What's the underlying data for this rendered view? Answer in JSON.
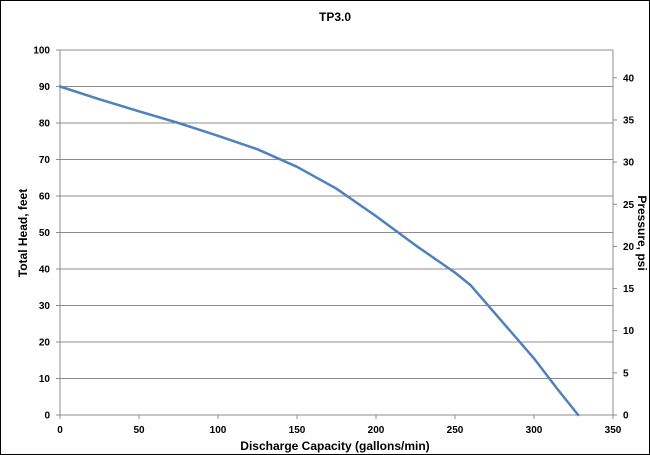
{
  "chart_data": {
    "type": "line",
    "title": "TP3.0",
    "xlabel": "Discharge Capacity (gallons/min)",
    "ylabel": "Total Head, feet",
    "y2label": "Pressure, psi",
    "xlim": [
      0,
      350
    ],
    "ylim": [
      0,
      100
    ],
    "y2lim": [
      0,
      43.3
    ],
    "x_ticks": [
      0,
      50,
      100,
      150,
      200,
      250,
      300,
      350
    ],
    "y_ticks": [
      0,
      10,
      20,
      30,
      40,
      50,
      60,
      70,
      80,
      90,
      100
    ],
    "y2_ticks": [
      0,
      5,
      10,
      15,
      20,
      25,
      30,
      35,
      40
    ],
    "grid": true,
    "legend": "none",
    "line_color": "#4f81bd",
    "series": [
      {
        "x": [
          0,
          25,
          50,
          75,
          100,
          125,
          150,
          175,
          200,
          225,
          250,
          260,
          275,
          300,
          315,
          328
        ],
        "y": [
          90,
          86.5,
          83.2,
          80,
          76.5,
          72.8,
          68,
          62,
          54.5,
          46.5,
          39,
          35.5,
          28,
          15.5,
          7,
          0
        ]
      }
    ]
  }
}
